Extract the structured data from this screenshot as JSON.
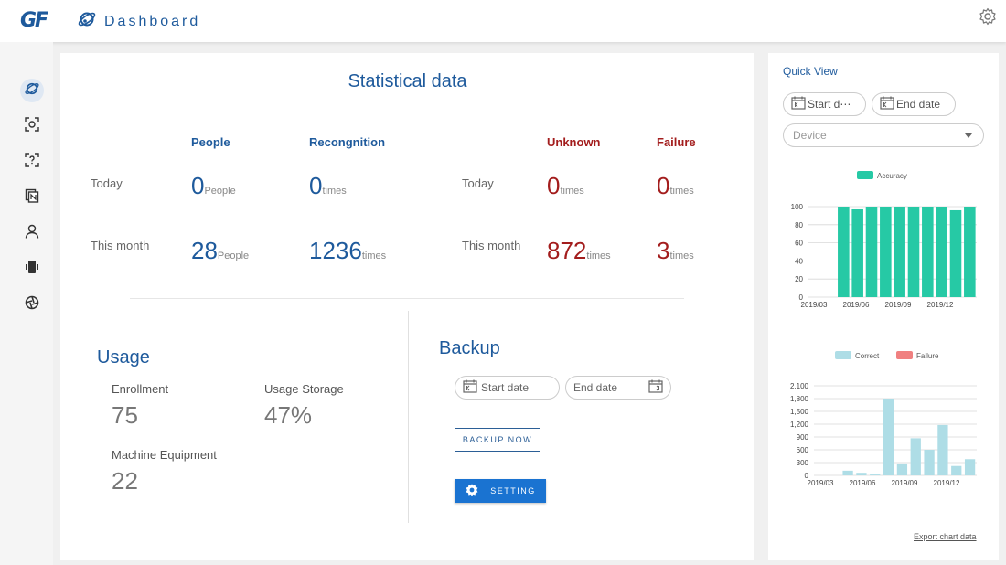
{
  "header": {
    "logo": "GF",
    "title": "Dashboard"
  },
  "stats": {
    "title": "Statistical data",
    "headers": {
      "people": "People",
      "recognition": "Recongnition",
      "unknown": "Unknown",
      "failure": "Failure"
    },
    "rows": {
      "today": "Today",
      "month": "This month"
    },
    "today": {
      "people": "0",
      "people_unit": "People",
      "recognition": "0",
      "recognition_unit": "times",
      "unknown": "0",
      "unknown_unit": "times",
      "failure": "0",
      "failure_unit": "times"
    },
    "month": {
      "people": "28",
      "people_unit": "People",
      "recognition": "1236",
      "recognition_unit": "times",
      "unknown": "872",
      "unknown_unit": "times",
      "failure": "3",
      "failure_unit": "times"
    }
  },
  "usage": {
    "title": "Usage",
    "enrollment_label": "Enrollment",
    "enrollment_value": "75",
    "storage_label": "Usage Storage",
    "storage_value": "47%",
    "machine_label": "Machine Equipment",
    "machine_value": "22"
  },
  "backup": {
    "title": "Backup",
    "start_placeholder": "Start date",
    "end_placeholder": "End date",
    "backup_now": "BACKUP NOW",
    "setting": "SETTING"
  },
  "quick_view": {
    "title": "Quick View",
    "start_date": "Start d⋯",
    "end_date": "End date",
    "device_placeholder": "Device",
    "export": "Export chart data"
  },
  "colors": {
    "brand": "#1e5a9c",
    "alert": "#a31d1d",
    "accuracy": "#26c9a5",
    "correct": "#aedde6",
    "failure": "#f08080",
    "button": "#1a73d1"
  },
  "chart_data": [
    {
      "type": "bar",
      "legend": [
        "Accuracy"
      ],
      "x_ticks": [
        "2019/03",
        "2019/06",
        "2019/09",
        "2019/12"
      ],
      "y_ticks": [
        "0",
        "20",
        "40",
        "60",
        "80",
        "100"
      ],
      "ylim": [
        0,
        100
      ],
      "series": [
        {
          "name": "Accuracy",
          "values": [
            0,
            0,
            100,
            97,
            100,
            100,
            100,
            100,
            100,
            100,
            96,
            100
          ]
        }
      ],
      "grid": true,
      "legend_position": "top"
    },
    {
      "type": "bar",
      "legend": [
        "Correct",
        "Failure"
      ],
      "x_ticks": [
        "2019/03",
        "2019/06",
        "2019/09",
        "2019/12"
      ],
      "y_ticks": [
        "0",
        "300",
        "600",
        "900",
        "1,200",
        "1,500",
        "1,800",
        "2,100"
      ],
      "ylim": [
        0,
        2100
      ],
      "series": [
        {
          "name": "Correct",
          "values": [
            0,
            0,
            110,
            60,
            20,
            1800,
            280,
            870,
            600,
            1180,
            220,
            380
          ]
        },
        {
          "name": "Failure",
          "values": [
            0,
            0,
            0,
            0,
            0,
            0,
            0,
            0,
            0,
            0,
            0,
            0
          ]
        }
      ],
      "grid": true,
      "legend_position": "top"
    }
  ]
}
